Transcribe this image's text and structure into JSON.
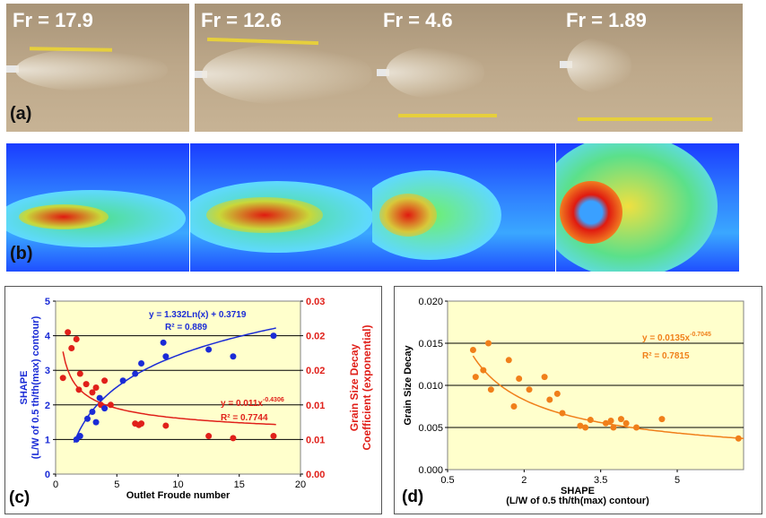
{
  "photos": [
    {
      "label": "Fr = 17.9"
    },
    {
      "label": "Fr = 12.6"
    },
    {
      "label": "Fr = 4.6"
    },
    {
      "label": "Fr = 1.89"
    }
  ],
  "panel_labels": {
    "a": "(a)",
    "b": "(b)",
    "c": "(c)",
    "d": "(d)"
  },
  "chart_data": [
    {
      "type": "scatter",
      "id": "c",
      "xlabel": "Outlet Froude number",
      "ylabel_left": "SHAPE\n(L/W of 0.5 th/th(max) contour)",
      "ylabel_right": "Grain Size Decay\nCoefficient (exponential)",
      "xlim": [
        0,
        20
      ],
      "xticks": [
        "0",
        "5",
        "10",
        "15",
        "20"
      ],
      "ylim_left": [
        0,
        5
      ],
      "yticks_left": [
        "0",
        "1",
        "2",
        "3",
        "4",
        "5"
      ],
      "ylim_right": [
        0,
        0.025
      ],
      "yticks_right": [
        "0.00",
        "0.01",
        "0.01",
        "0.02",
        "0.02",
        "0.03"
      ],
      "grid": true,
      "colors": {
        "left": "#1a2bd6",
        "right": "#e0201a",
        "bg": "#ffffcc"
      },
      "series": [
        {
          "axis": "left",
          "points": [
            [
              1.7,
              1.0
            ],
            [
              2.0,
              1.1
            ],
            [
              2.6,
              1.6
            ],
            [
              3.0,
              1.8
            ],
            [
              3.3,
              1.5
            ],
            [
              3.6,
              2.2
            ],
            [
              4.0,
              1.9
            ],
            [
              5.5,
              2.7
            ],
            [
              6.5,
              2.9
            ],
            [
              7.0,
              3.2
            ],
            [
              8.8,
              3.8
            ],
            [
              9.0,
              3.4
            ],
            [
              12.5,
              3.6
            ],
            [
              14.5,
              3.4
            ],
            [
              17.8,
              4.0
            ]
          ],
          "trend": "log",
          "trend_label": "y = 1.332Ln(x) + 0.3719",
          "r2_label": "R² = 0.889"
        },
        {
          "axis": "right",
          "points": [
            [
              0.6,
              0.0139
            ],
            [
              1.0,
              0.0205
            ],
            [
              1.3,
              0.0182
            ],
            [
              1.7,
              0.0195
            ],
            [
              1.9,
              0.0122
            ],
            [
              2.0,
              0.0145
            ],
            [
              2.5,
              0.013
            ],
            [
              3.0,
              0.0118
            ],
            [
              3.3,
              0.0125
            ],
            [
              3.7,
              0.01
            ],
            [
              4.0,
              0.0135
            ],
            [
              4.5,
              0.01
            ],
            [
              6.5,
              0.0073
            ],
            [
              6.8,
              0.0071
            ],
            [
              7.0,
              0.0073
            ],
            [
              9.0,
              0.007
            ],
            [
              12.5,
              0.0055
            ],
            [
              14.5,
              0.0052
            ],
            [
              17.8,
              0.0055
            ]
          ],
          "trend": "power",
          "trend_label": "y = 0.011x-0.4306",
          "r2_label": "R² = 0.7744"
        }
      ]
    },
    {
      "type": "scatter",
      "id": "d",
      "xlabel": "SHAPE\n(L/W of 0.5 th/th(max) contour)",
      "ylabel": "Grain Size Decay",
      "xlim": [
        0.5,
        6.3
      ],
      "xticks": [
        "0.5",
        "2",
        "3.5",
        "5"
      ],
      "ylim": [
        0,
        0.02
      ],
      "yticks": [
        "0.000",
        "0.005",
        "0.010",
        "0.015",
        "0.020"
      ],
      "grid": true,
      "colors": {
        "points": "#f07f1a",
        "bg": "#ffffcc"
      },
      "points": [
        [
          1.0,
          0.0142
        ],
        [
          1.05,
          0.011
        ],
        [
          1.2,
          0.0118
        ],
        [
          1.3,
          0.015
        ],
        [
          1.35,
          0.0095
        ],
        [
          1.7,
          0.013
        ],
        [
          1.8,
          0.0075
        ],
        [
          1.9,
          0.0108
        ],
        [
          2.1,
          0.0095
        ],
        [
          2.4,
          0.011
        ],
        [
          2.5,
          0.0083
        ],
        [
          2.65,
          0.009
        ],
        [
          2.75,
          0.0067
        ],
        [
          3.1,
          0.0052
        ],
        [
          3.2,
          0.005
        ],
        [
          3.3,
          0.0059
        ],
        [
          3.6,
          0.0055
        ],
        [
          3.7,
          0.0058
        ],
        [
          3.75,
          0.005
        ],
        [
          3.9,
          0.006
        ],
        [
          4.0,
          0.0055
        ],
        [
          4.2,
          0.005
        ],
        [
          4.7,
          0.006
        ],
        [
          6.2,
          0.0037
        ]
      ],
      "trend": "power",
      "trend_label": "y = 0.0135x-0.7045",
      "r2_label": "R² = 0.7815"
    }
  ]
}
